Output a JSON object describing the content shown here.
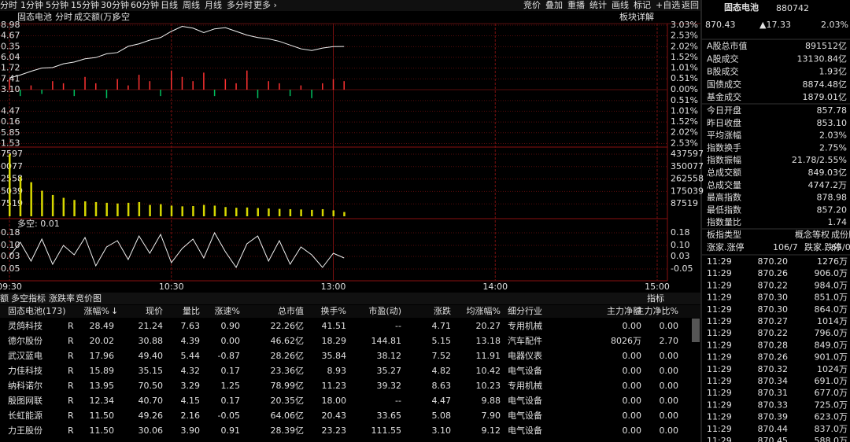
{
  "toolbar": {
    "tabs": [
      "分时",
      "1分钟",
      "5分钟",
      "15分钟",
      "30分钟",
      "60分钟",
      "日线",
      "周线",
      "月线",
      "多分时",
      "更多 ›"
    ],
    "actions": [
      "竞价",
      "叠加",
      "重播",
      "统计",
      "画线",
      "标记",
      "+自选",
      "返回"
    ]
  },
  "chart": {
    "title": "固态电池",
    "tabs": [
      "分时",
      "成交额(万)",
      "多空"
    ],
    "detail": "板块详解",
    "minutes": [
      0,
      4,
      8,
      12,
      16,
      20,
      24,
      28,
      32,
      36,
      40,
      44,
      48,
      52,
      56,
      60,
      64,
      68,
      72,
      76,
      80,
      84,
      88,
      92,
      96,
      100,
      104,
      108,
      112,
      116,
      120,
      124
    ],
    "price": [
      857.8,
      859.0,
      860.5,
      861.8,
      862.0,
      863.5,
      864.2,
      865.5,
      866.0,
      867.5,
      868.0,
      870.5,
      871.5,
      873.0,
      874.0,
      876.5,
      878.5,
      877.8,
      876.0,
      877.5,
      878.0,
      876.5,
      875.0,
      874.0,
      873.5,
      872.5,
      871.0,
      869.5,
      868.8,
      869.8,
      870.4,
      870.43
    ],
    "flow": [
      0.5,
      -0.3,
      0.2,
      -0.2,
      0.4,
      0.3,
      -0.3,
      0.6,
      0.3,
      -0.4,
      0.5,
      0.2,
      0.7,
      0.4,
      -0.3,
      0.9,
      0.6,
      0.4,
      0.8,
      -0.3,
      0.5,
      0.3,
      0.9,
      -0.4,
      0.4,
      0.3,
      -0.3,
      0.2,
      -0.4,
      0.3,
      0.5,
      0.4
    ],
    "volume": [
      437597,
      280000,
      240000,
      180000,
      150000,
      130000,
      115000,
      105000,
      100000,
      95000,
      90000,
      95000,
      100000,
      80000,
      85000,
      75000,
      70000,
      72000,
      80000,
      75000,
      65000,
      60000,
      62000,
      58000,
      55000,
      52000,
      50000,
      48000,
      45000,
      50000,
      42000,
      30000
    ],
    "duokong": [
      0.03,
      0.12,
      0.0,
      0.14,
      -0.02,
      0.1,
      0.04,
      0.15,
      -0.03,
      0.09,
      0.13,
      0.01,
      0.16,
      0.05,
      0.17,
      -0.01,
      0.08,
      0.14,
      0.02,
      0.18,
      0.06,
      -0.04,
      0.11,
      0.16,
      0.0,
      0.13,
      -0.02,
      0.09,
      0.04,
      -0.04,
      0.05,
      0.02
    ],
    "price_ylim": [
      831.53,
      878.98
    ],
    "price_ticks": [
      {
        "value": 878.98,
        "label": "8.98"
      },
      {
        "value": 874.67,
        "label": "4.67"
      },
      {
        "value": 870.35,
        "label": "0.35"
      },
      {
        "value": 866.04,
        "label": "6.04"
      },
      {
        "value": 861.72,
        "label": "1.72"
      },
      {
        "value": 857.41,
        "label": "7.41"
      },
      {
        "value": 853.1,
        "label": "3.10"
      },
      {
        "value": 844.47,
        "label": "4.47"
      },
      {
        "value": 840.16,
        "label": "0.16"
      },
      {
        "value": 835.85,
        "label": "5.85"
      },
      {
        "value": 831.53,
        "label": "1.53"
      }
    ],
    "pct_ylim": [
      -2.53,
      3.03
    ],
    "pct_ticks": [
      {
        "value": 3.03,
        "label": "3.03%"
      },
      {
        "value": 2.53,
        "label": "2.53%"
      },
      {
        "value": 2.02,
        "label": "2.02%"
      },
      {
        "value": 1.52,
        "label": "1.52%"
      },
      {
        "value": 1.01,
        "label": "1.01%"
      },
      {
        "value": 0.51,
        "label": "0.51%"
      },
      {
        "value": 0,
        "label": "0.00%"
      },
      {
        "value": -0.51,
        "label": "0.51%"
      },
      {
        "value": -1.01,
        "label": "1.01%"
      },
      {
        "value": -1.52,
        "label": "1.52%"
      },
      {
        "value": -2.02,
        "label": "2.02%"
      },
      {
        "value": -2.53,
        "label": "2.53%"
      }
    ],
    "volume_ylim": [
      0,
      437597
    ],
    "volume_ticks_right": [
      437597,
      350077,
      262558,
      175039,
      87519
    ],
    "volume_ticks_left": [
      {
        "value": 437597,
        "label": "7597"
      },
      {
        "value": 350077,
        "label": "0077"
      },
      {
        "value": 262558,
        "label": "2558"
      },
      {
        "value": 175039,
        "label": "5039"
      },
      {
        "value": 87519,
        "label": "7519"
      }
    ],
    "dk_label": "多空: 0.01",
    "dk_ylim": [
      -0.05,
      0.18
    ],
    "dk_ticks_left": [
      0.18,
      {
        "value": 0.1,
        "label": "0.10"
      },
      0.03,
      {
        "value": -0.05,
        "label": "0.05"
      }
    ],
    "dk_ticks_right": [
      0.18,
      {
        "value": 0.1,
        "label": "0.10"
      },
      0.03,
      -0.05
    ],
    "xlim": [
      0,
      240
    ],
    "xticks": [
      {
        "value": 0,
        "label": "09:30"
      },
      {
        "value": 60,
        "label": "10:30"
      },
      {
        "value": 120,
        "label": "13:00"
      },
      {
        "value": 180,
        "label": "14:00"
      },
      {
        "value": 240,
        "label": "15:00"
      }
    ],
    "colors": {
      "price": "#f0f0f0",
      "up": "#ff3232",
      "down": "#00c060",
      "volume": "#d8d800",
      "dk": "#f0f0f0"
    }
  },
  "subtabs": {
    "tabs": [
      "额",
      "多空指标",
      "涨跌率",
      "竞价图"
    ],
    "right": "指标"
  },
  "table": {
    "headers": [
      "固态电池(173)",
      "涨幅%",
      "现价",
      "量比",
      "涨速%",
      "总市值",
      "换手%",
      "市盈(动)",
      "涨跌",
      "均涨幅%",
      "细分行业",
      "主力净额",
      "主力净比%"
    ],
    "sort_arrow": "↓",
    "rows": [
      [
        "灵鸽科技",
        "R",
        "28.49",
        "21.24",
        "7.63",
        "0.90",
        "22.26亿",
        "41.51",
        "--",
        "4.71",
        "20.27",
        "专用机械",
        "0.00",
        "0.00"
      ],
      [
        "德尔股份",
        "R",
        "20.02",
        "30.88",
        "4.39",
        "0.00",
        "46.62亿",
        "18.29",
        "144.81",
        "5.15",
        "13.18",
        "汽车配件",
        "8026万",
        "2.70"
      ],
      [
        "武汉蓝电",
        "R",
        "17.96",
        "49.40",
        "5.44",
        "-0.87",
        "28.26亿",
        "35.84",
        "38.12",
        "7.52",
        "11.91",
        "电器仪表",
        "0.00",
        "0.00"
      ],
      [
        "力佳科技",
        "R",
        "15.89",
        "35.15",
        "4.32",
        "0.17",
        "23.36亿",
        "8.93",
        "35.27",
        "4.82",
        "10.42",
        "电气设备",
        "0.00",
        "0.00"
      ],
      [
        "纳科诺尔",
        "R",
        "13.95",
        "70.50",
        "3.29",
        "1.25",
        "78.99亿",
        "11.23",
        "39.32",
        "8.63",
        "10.23",
        "专用机械",
        "0.00",
        "0.00"
      ],
      [
        "殷图网联",
        "R",
        "12.34",
        "40.70",
        "4.15",
        "0.17",
        "20.35亿",
        "18.00",
        "--",
        "4.47",
        "9.88",
        "电气设备",
        "0.00",
        "0.00"
      ],
      [
        "长虹能源",
        "R",
        "11.50",
        "49.26",
        "2.16",
        "-0.05",
        "64.06亿",
        "20.43",
        "33.65",
        "5.08",
        "7.90",
        "电气设备",
        "0.00",
        "0.00"
      ],
      [
        "力王股份",
        "R",
        "11.50",
        "30.06",
        "3.90",
        "0.91",
        "28.39亿",
        "23.23",
        "111.55",
        "3.10",
        "9.12",
        "电气设备",
        "0.00",
        "0.00"
      ]
    ],
    "turnover_highlight": [
      true,
      false,
      true,
      false,
      false,
      false,
      true,
      true
    ]
  },
  "info": {
    "name": "固态电池",
    "code": "880742",
    "price": "870.43",
    "change": "▲17.33",
    "pct": "2.03%",
    "market": [
      [
        "A股总市值",
        "891512亿"
      ],
      [
        "A股成交",
        "13130.84亿"
      ],
      [
        "B股成交",
        "1.93亿"
      ],
      [
        "国债成交",
        "8874.48亿"
      ],
      [
        "基金成交",
        "1879.01亿"
      ]
    ],
    "stats": [
      [
        "今日开盘",
        "857.78",
        true
      ],
      [
        "昨日收盘",
        "853.10",
        false
      ],
      [
        "平均涨幅",
        "2.03%",
        true
      ],
      [
        "指数换手",
        "2.75%",
        false
      ],
      [
        "指数振幅",
        "21.78/2.55%",
        false
      ],
      [
        "总成交额",
        "849.03亿",
        false
      ],
      [
        "总成交量",
        "4747.2万",
        false
      ],
      [
        "最高指数",
        "878.98",
        true
      ],
      [
        "最低指数",
        "857.20",
        true
      ],
      [
        "指数量比",
        "1.74",
        false
      ]
    ],
    "type_label": "板指类型",
    "types": [
      "概念",
      "等权",
      "成份股"
    ],
    "breadth": [
      "涨家.涨停",
      "106/7",
      "跌家.跌停",
      "65/0"
    ],
    "ticks": [
      [
        "11:29",
        "870.20",
        "1276万"
      ],
      [
        "11:29",
        "870.26",
        "906.0万"
      ],
      [
        "11:29",
        "870.22",
        "984.0万"
      ],
      [
        "11:29",
        "870.30",
        "851.0万"
      ],
      [
        "11:29",
        "870.30",
        "864.0万"
      ],
      [
        "11:29",
        "870.27",
        "1014万"
      ],
      [
        "11:29",
        "870.22",
        "796.0万"
      ],
      [
        "11:29",
        "870.28",
        "849.0万"
      ],
      [
        "11:29",
        "870.26",
        "901.0万"
      ],
      [
        "11:29",
        "870.32",
        "1024万"
      ],
      [
        "11:29",
        "870.34",
        "691.0万"
      ],
      [
        "11:29",
        "870.31",
        "677.0万"
      ],
      [
        "11:29",
        "870.33",
        "725.0万"
      ],
      [
        "11:29",
        "870.39",
        "623.0万"
      ],
      [
        "11:29",
        "870.44",
        "837.0万"
      ],
      [
        "11:29",
        "870.45",
        "588.0万"
      ]
    ]
  }
}
